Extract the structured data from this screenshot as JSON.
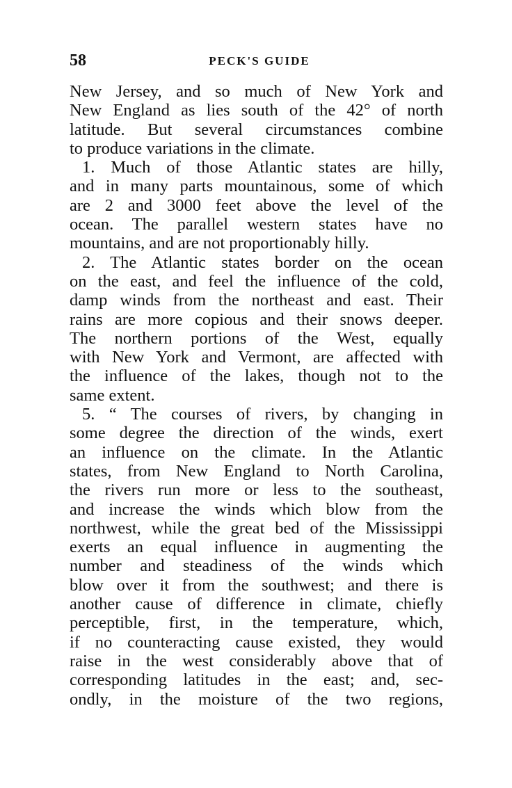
{
  "header": {
    "page_number": "58",
    "running_title": "PECK'S GUIDE"
  },
  "lines": [
    {
      "text": "New Jersey, and so much of New York and"
    },
    {
      "text": "New England as lies south of the 42° of north"
    },
    {
      "text": "latitude. But several circumstances combine"
    },
    {
      "text": "to produce variations in the climate.",
      "last": true
    },
    {
      "text": "1. Much of those Atlantic states are hilly,",
      "indent": true
    },
    {
      "text": "and in many parts mountainous, some of which"
    },
    {
      "text": "are 2 and 3000 feet above the level of the"
    },
    {
      "text": "ocean. The parallel western states have no"
    },
    {
      "text": "mountains, and are not proportionably hilly.",
      "last": true
    },
    {
      "text": "2. The Atlantic states border on the ocean",
      "indent": true
    },
    {
      "text": "on the east, and feel the influence of the cold,"
    },
    {
      "text": "damp winds from the northeast and east. Their"
    },
    {
      "text": "rains are more copious and their snows deeper."
    },
    {
      "text": "The northern portions of the West, equally"
    },
    {
      "text": "with New York and Vermont, are affected with"
    },
    {
      "text": "the influence of the lakes, though not to the"
    },
    {
      "text": "same extent.",
      "last": true
    },
    {
      "text": "5. “ The courses of rivers, by changing in",
      "indent": true
    },
    {
      "text": "some degree the direction of the winds, exert"
    },
    {
      "text": "an influence on the climate. In the Atlantic"
    },
    {
      "text": "states, from New England to North Carolina,"
    },
    {
      "text": "the rivers run more or less to the southeast,"
    },
    {
      "text": "and increase the winds which blow from the"
    },
    {
      "text": "northwest, while the great bed of the Mississippi"
    },
    {
      "text": "exerts an equal influence in augmenting the"
    },
    {
      "text": "number and steadiness of the winds which"
    },
    {
      "text": "blow over it from the southwest; and there is"
    },
    {
      "text": "another cause of difference in climate, chiefly"
    },
    {
      "text": "perceptible, first, in the temperature, which,"
    },
    {
      "text": "if no counteracting cause existed, they would"
    },
    {
      "text": "raise in the west considerably above that of"
    },
    {
      "text": "corresponding latitudes in the east; and, sec-"
    },
    {
      "text": "ondly, in the moisture of the two regions,"
    }
  ]
}
